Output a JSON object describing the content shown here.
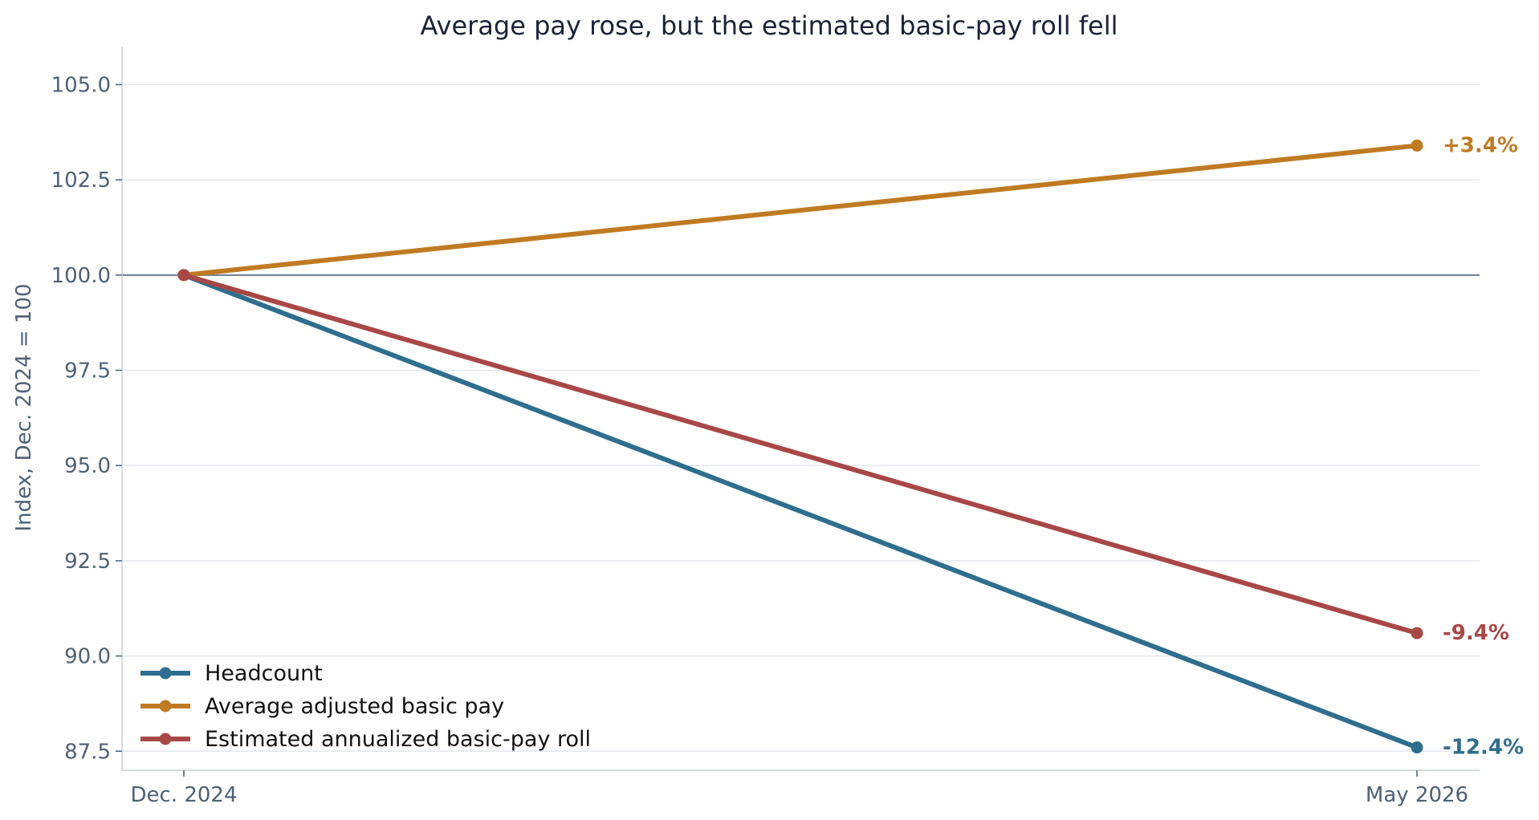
{
  "chart_data": {
    "type": "line",
    "title": "Average pay rose, but the estimated basic-pay roll fell",
    "xlabel": "",
    "ylabel": "Index, Dec. 2024 = 100",
    "categories": [
      "Dec. 2024",
      "May 2026"
    ],
    "ylim": [
      87.0,
      106.0
    ],
    "yticks": [
      "87.5",
      "90.0",
      "92.5",
      "95.0",
      "97.5",
      "100.0",
      "102.5",
      "105.0"
    ],
    "reference_line": 100.0,
    "grid": "horizontal",
    "legend_position": "lower-left",
    "series": [
      {
        "name": "Headcount",
        "values": [
          100.0,
          87.6
        ],
        "color": "#2e6e8e",
        "end_label": "-12.4%"
      },
      {
        "name": "Average adjusted basic pay",
        "values": [
          100.0,
          103.4
        ],
        "color": "#c07a22",
        "end_label": "+3.4%"
      },
      {
        "name": "Estimated annualized basic-pay roll",
        "values": [
          100.0,
          90.6
        ],
        "color": "#a84846",
        "end_label": "-9.4%"
      }
    ]
  }
}
